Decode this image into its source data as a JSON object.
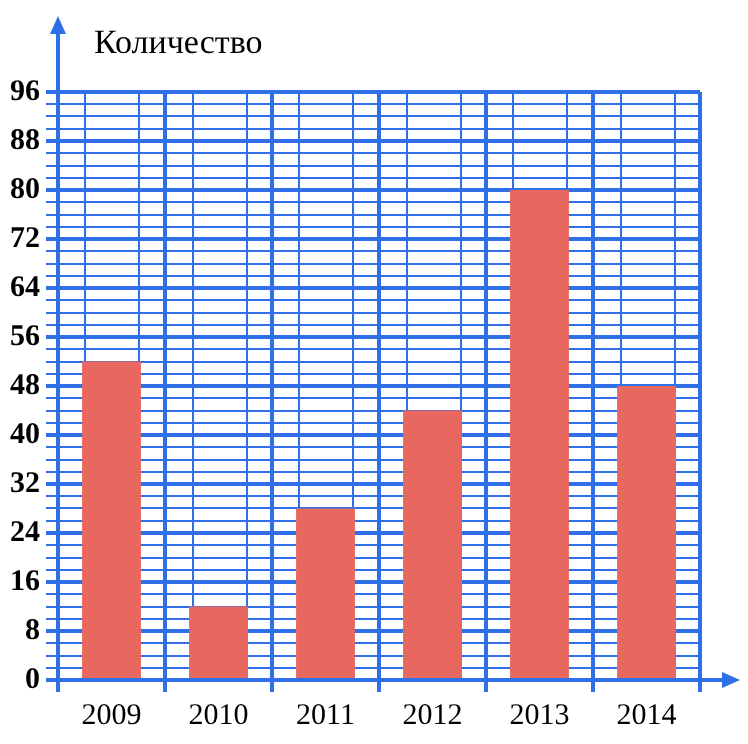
{
  "chart_data": {
    "type": "bar",
    "ylabel": "Количество",
    "categories": [
      "2009",
      "2010",
      "2011",
      "2012",
      "2013",
      "2014"
    ],
    "values": [
      52,
      12,
      28,
      44,
      80,
      48
    ],
    "color": "#e8685f",
    "ylim": [
      0,
      96
    ],
    "yticks": [
      0,
      {
        "value": 2,
        "label": null
      },
      {
        "value": 4,
        "label": null
      },
      {
        "value": 6,
        "label": null
      },
      8,
      {
        "value": 10,
        "label": null
      },
      {
        "value": 12,
        "label": null
      },
      {
        "value": 14,
        "label": null
      },
      16,
      {
        "value": 18,
        "label": null
      },
      {
        "value": 20,
        "label": null
      },
      {
        "value": 22,
        "label": null
      },
      24,
      {
        "value": 26,
        "label": null
      },
      {
        "value": 28,
        "label": null
      },
      {
        "value": 30,
        "label": null
      },
      32,
      {
        "value": 34,
        "label": null
      },
      {
        "value": 36,
        "label": null
      },
      {
        "value": 38,
        "label": null
      },
      40,
      {
        "value": 42,
        "label": null
      },
      {
        "value": 44,
        "label": null
      },
      {
        "value": 46,
        "label": null
      },
      48,
      {
        "value": 50,
        "label": null
      },
      {
        "value": 52,
        "label": null
      },
      {
        "value": 54,
        "label": null
      },
      56,
      {
        "value": 58,
        "label": null
      },
      {
        "value": 60,
        "label": null
      },
      {
        "value": 62,
        "label": null
      },
      64,
      {
        "value": 66,
        "label": null
      },
      {
        "value": 68,
        "label": null
      },
      {
        "value": 70,
        "label": null
      },
      72,
      {
        "value": 74,
        "label": null
      },
      {
        "value": 76,
        "label": null
      },
      {
        "value": 78,
        "label": null
      },
      80,
      {
        "value": 82,
        "label": null
      },
      {
        "value": 84,
        "label": null
      },
      {
        "value": 86,
        "label": null
      },
      88,
      {
        "value": 90,
        "label": null
      },
      {
        "value": 92,
        "label": null
      },
      {
        "value": 94,
        "label": null
      },
      96
    ],
    "grid": true
  }
}
